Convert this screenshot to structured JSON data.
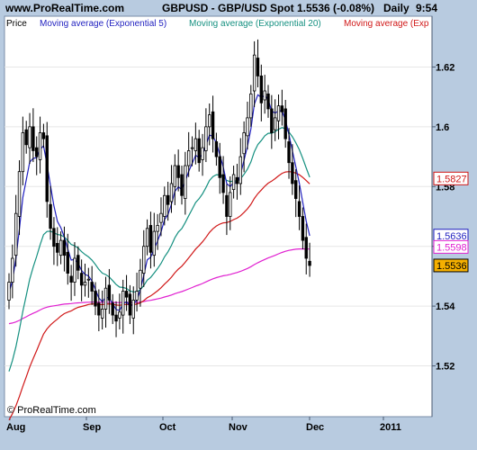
{
  "header": {
    "site": "www.ProRealTime.com",
    "symbol": "GBPUSD - GBP/USD Spot",
    "price_change": "1.5536 (-0.08%)",
    "period": "Daily",
    "time": "9:54"
  },
  "legend": {
    "price": "Price",
    "ma5": "Moving average (Exponential 5)",
    "ma20": "Moving average (Exponential 20)",
    "ma_long": "Moving average (Exp"
  },
  "watermark": "© ProRealTime.com",
  "colors": {
    "ma5": "#1f1fbf",
    "ma20": "#159080",
    "ma_long": "#d01818",
    "ma_magenta": "#e020d0",
    "candle": "#000000",
    "last_price_bg": "#f5b000"
  },
  "chart_data": {
    "type": "candlestick",
    "x_tick_labels": [
      "Aug",
      "Sep",
      "Oct",
      "Nov",
      "Dec",
      "2011"
    ],
    "y_tick_labels": [
      "1.62",
      "1.6",
      "1.58",
      "1.56",
      "1.54",
      "1.52"
    ],
    "y_ticks": [
      1.62,
      1.6,
      1.58,
      1.56,
      1.54,
      1.52
    ],
    "ylim": [
      1.503,
      1.637
    ],
    "price_tags": [
      {
        "label": "1.5827",
        "value": 1.5827,
        "color": "#d01818"
      },
      {
        "label": "1.5636",
        "value": 1.5636,
        "color": "#1f1fbf"
      },
      {
        "label": "1.5598",
        "value": 1.5598,
        "color": "#e020d0"
      },
      {
        "label": "1.5536",
        "value": 1.5536,
        "color": "#000000"
      }
    ],
    "close": [
      1.548,
      1.556,
      1.571,
      1.585,
      1.598,
      1.594,
      1.6,
      1.592,
      1.59,
      1.598,
      1.596,
      1.575,
      1.566,
      1.56,
      1.558,
      1.562,
      1.557,
      1.551,
      1.548,
      1.556,
      1.552,
      1.547,
      1.548,
      1.549,
      1.545,
      1.54,
      1.537,
      1.539,
      1.546,
      1.542,
      1.537,
      1.535,
      1.538,
      1.545,
      1.543,
      1.537,
      1.542,
      1.545,
      1.552,
      1.56,
      1.566,
      1.558,
      1.565,
      1.567,
      1.571,
      1.577,
      1.574,
      1.581,
      1.587,
      1.583,
      1.577,
      1.587,
      1.592,
      1.593,
      1.596,
      1.588,
      1.593,
      1.6,
      1.604,
      1.596,
      1.59,
      1.583,
      1.578,
      1.57,
      1.578,
      1.584,
      1.581,
      1.59,
      1.598,
      1.603,
      1.611,
      1.624,
      1.617,
      1.608,
      1.612,
      1.606,
      1.598,
      1.603,
      1.607,
      1.605,
      1.596,
      1.588,
      1.581,
      1.576,
      1.57,
      1.562,
      1.556,
      1.5536
    ]
  }
}
